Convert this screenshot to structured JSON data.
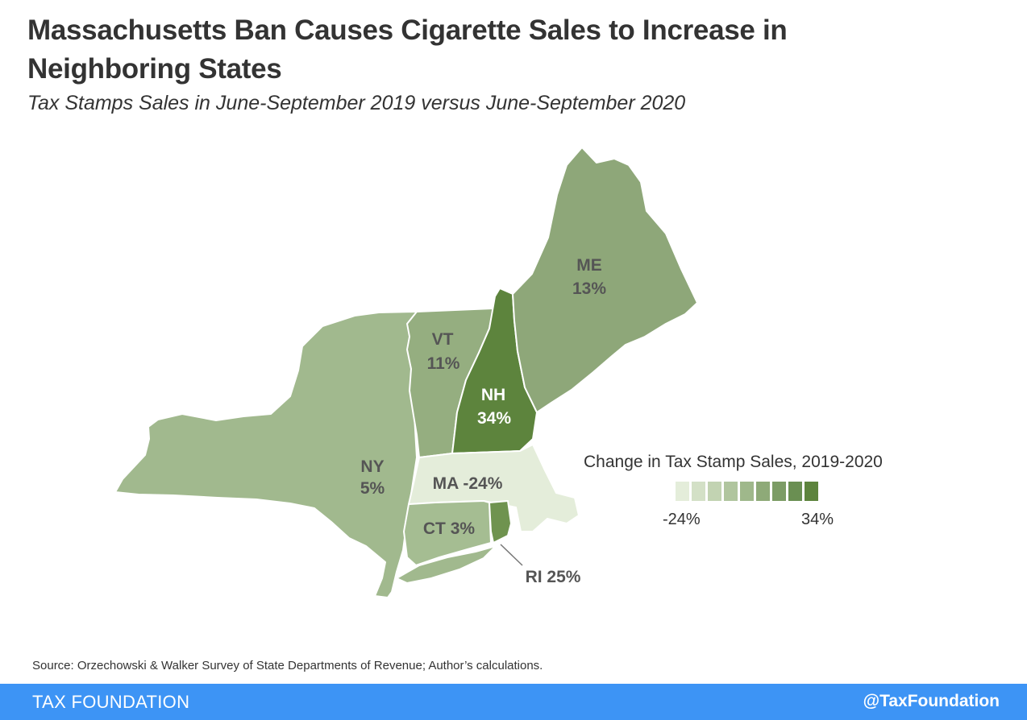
{
  "title": "Massachusetts Ban Causes Cigarette Sales to Increase in Neighboring States",
  "subtitle": "Tax Stamps Sales in June-September 2019 versus June-September 2020",
  "states": [
    {
      "id": "ny",
      "abbr": "NY",
      "value": "5%",
      "pct": 5,
      "color": "#a1b98e"
    },
    {
      "id": "vt",
      "abbr": "VT",
      "value": "11%",
      "pct": 11,
      "color": "#95ae80"
    },
    {
      "id": "nh",
      "abbr": "NH",
      "value": "34%",
      "pct": 34,
      "color": "#5d843d"
    },
    {
      "id": "me",
      "abbr": "ME",
      "value": "13%",
      "pct": 13,
      "color": "#8ea779"
    },
    {
      "id": "ma",
      "abbr": "MA",
      "value": "-24%",
      "pct": -24,
      "color": "#e4edda"
    },
    {
      "id": "ct",
      "abbr": "CT",
      "value": "3%",
      "pct": 3,
      "color": "#a5bd92"
    },
    {
      "id": "ri",
      "abbr": "RI",
      "value": "25%",
      "pct": 25,
      "color": "#6f934f"
    }
  ],
  "legend": {
    "title": "Change in Tax Stamp Sales, 2019-2020",
    "min_label": "-24%",
    "max_label": "34%",
    "colors": [
      "#e4edda",
      "#d3e0c6",
      "#c2d3b2",
      "#b0c59e",
      "#9fb88b",
      "#8eaa78",
      "#7c9c65",
      "#6a8f52",
      "#5d843d"
    ]
  },
  "source": "Source: Orzechowski & Walker Survey of State Departments of Revenue; Author’s calculations.",
  "footer": {
    "left": "TAX FOUNDATION",
    "right": "@TaxFoundation"
  }
}
